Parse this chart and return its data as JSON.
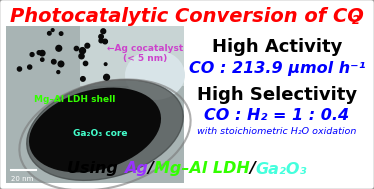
{
  "title": "Photocatalytic Conversion of CO",
  "title_sub": "2",
  "title_color": "#FF0000",
  "bg_color": "#FFFFFF",
  "border_color": "#999999",
  "image_label_ag": "←Ag cocatalyst\n(< 5 nm)",
  "image_label_ag_color": "#CC44CC",
  "image_label_ldh": "Mg–Al LDH shell",
  "image_label_ldh_color": "#33FF00",
  "image_label_core": "Ga₂O₃ core",
  "image_label_core_color": "#44FFCC",
  "image_scale": "20 nm",
  "high_activity_label": "High Activity",
  "high_activity_color": "#000000",
  "co_activity": "CO : 213.9 μmol h⁻¹",
  "co_activity_color": "#0000FF",
  "high_selectivity_label": "High Selectivity",
  "high_selectivity_color": "#000000",
  "co_selectivity": "CO : H₂ = 1 : 0.4",
  "co_selectivity_color": "#0000FF",
  "small_note": "with stoichiometric H₂O oxidation",
  "small_note_color": "#0000FF",
  "bottom_parts": [
    {
      "text": "Using ",
      "color": "#000000"
    },
    {
      "text": "Ag",
      "color": "#9933FF"
    },
    {
      "text": "/",
      "color": "#000000"
    },
    {
      "text": "Mg–Al LDH",
      "color": "#33FF00"
    },
    {
      "text": "/",
      "color": "#000000"
    },
    {
      "text": "Ga₂O₃",
      "color": "#44FFDD"
    }
  ],
  "figsize": [
    3.74,
    1.89
  ],
  "dpi": 100
}
